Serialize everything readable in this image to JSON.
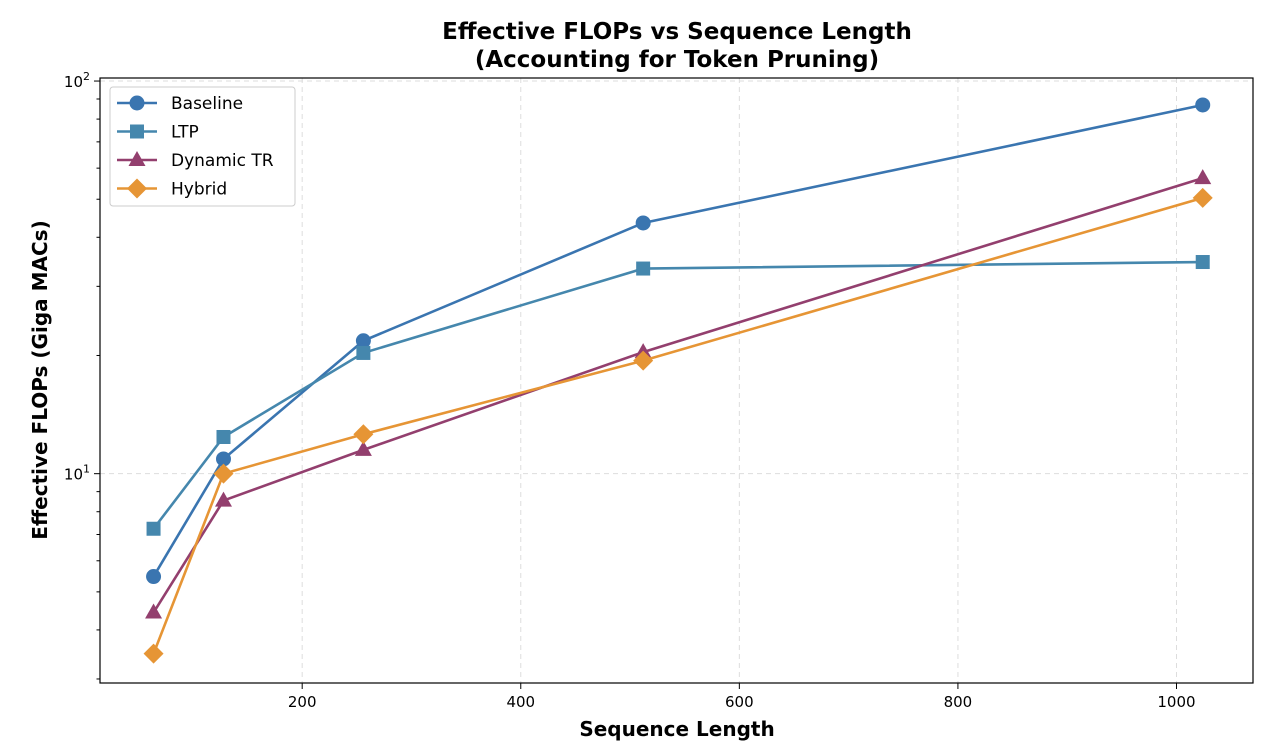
{
  "chart_data": {
    "type": "line",
    "title": "Effective FLOPs vs Sequence Length",
    "subtitle": "(Accounting for Token Pruning)",
    "xlabel": "Sequence Length",
    "ylabel": "Effective FLOPs (Giga MACs)",
    "x": [
      64,
      128,
      256,
      512,
      1024
    ],
    "xlim": [
      15,
      1070
    ],
    "ylim": [
      2.93,
      101.8
    ],
    "yscale": "log",
    "xticks": [
      200,
      400,
      600,
      800,
      1000
    ],
    "yticks": [
      {
        "value": 10,
        "label": "10",
        "exp": "1"
      },
      {
        "value": 100,
        "label": "10",
        "exp": "2"
      }
    ],
    "grid": true,
    "legend_position": "top-left",
    "series": [
      {
        "name": "Baseline",
        "values": [
          5.47,
          10.9,
          21.8,
          43.5,
          86.9
        ],
        "color": "#3a75b0",
        "marker": "circle"
      },
      {
        "name": "LTP",
        "values": [
          7.24,
          12.4,
          20.3,
          33.3,
          34.6
        ],
        "color": "#4587ad",
        "marker": "square"
      },
      {
        "name": "Dynamic TR",
        "values": [
          4.43,
          8.54,
          11.5,
          20.4,
          56.6
        ],
        "color": "#933f6e",
        "marker": "triangle"
      },
      {
        "name": "Hybrid",
        "values": [
          3.48,
          10.0,
          12.6,
          19.4,
          50.4
        ],
        "color": "#e69535",
        "marker": "diamond"
      }
    ]
  }
}
